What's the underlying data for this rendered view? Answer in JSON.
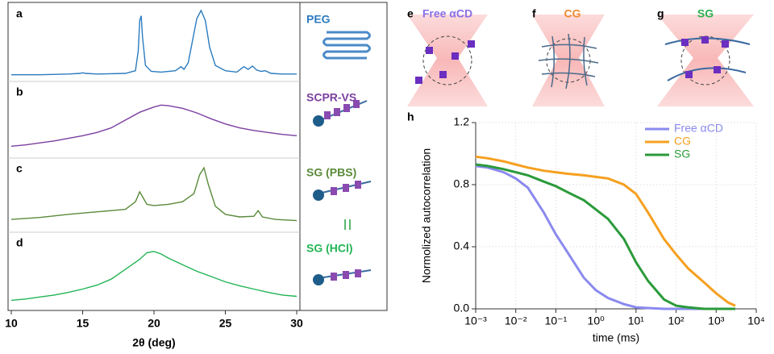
{
  "chart_data": [
    {
      "type": "line",
      "xlabel": "2θ (deg)",
      "xlim": [
        10,
        30
      ],
      "xticks": [
        10,
        15,
        20,
        25,
        30
      ],
      "ylim": [
        0,
        100
      ],
      "series": [
        {
          "name": "PEG",
          "panel": "a",
          "color": "#2b7bbf",
          "x": [
            10,
            12,
            14,
            14.8,
            15,
            15.2,
            16,
            18,
            18.7,
            18.9,
            19.0,
            19.1,
            19.2,
            19.4,
            19.8,
            20.5,
            21.5,
            21.9,
            22.1,
            22.4,
            22.7,
            23.0,
            23.3,
            23.6,
            23.9,
            24.3,
            25,
            25.8,
            26.3,
            26.6,
            26.9,
            27.2,
            27.5,
            27.8,
            28.2,
            29,
            30
          ],
          "values": [
            4,
            4,
            5,
            6,
            7,
            6,
            5,
            6,
            10,
            40,
            85,
            92,
            60,
            18,
            9,
            8,
            10,
            16,
            12,
            22,
            55,
            88,
            100,
            85,
            45,
            18,
            10,
            8,
            16,
            12,
            17,
            11,
            9,
            10,
            6,
            5,
            5
          ]
        },
        {
          "name": "SCPR-VS",
          "panel": "b",
          "color": "#7b3fa0",
          "x": [
            10,
            11,
            12,
            13,
            14,
            15,
            16,
            17,
            18,
            19,
            20,
            20.5,
            21,
            22,
            23,
            24,
            25,
            26,
            27,
            28,
            29,
            30
          ],
          "values": [
            12,
            14,
            17,
            20,
            24,
            28,
            33,
            40,
            52,
            64,
            72,
            75,
            74,
            70,
            63,
            54,
            46,
            40,
            36,
            33,
            30,
            28
          ]
        },
        {
          "name": "SG (PBS)",
          "panel": "c",
          "color": "#5a8a3a",
          "x": [
            10,
            12,
            14,
            16,
            17,
            18,
            18.7,
            19.0,
            19.2,
            19.5,
            20,
            21,
            22,
            22.8,
            23.2,
            23.5,
            23.8,
            24.3,
            25,
            26,
            27,
            27.3,
            27.6,
            28.5,
            30
          ],
          "values": [
            14,
            17,
            22,
            26,
            28,
            30,
            42,
            58,
            50,
            38,
            36,
            38,
            42,
            55,
            85,
            96,
            70,
            35,
            22,
            18,
            19,
            28,
            18,
            14,
            12
          ]
        },
        {
          "name": "SG (HCl)",
          "panel": "d",
          "color": "#22b455",
          "x": [
            10,
            11,
            12,
            13,
            14,
            15,
            16,
            17,
            18,
            19,
            19.5,
            20,
            20.5,
            21,
            22,
            23,
            24,
            25,
            26,
            27,
            28,
            29,
            30
          ],
          "values": [
            8,
            10,
            13,
            16,
            20,
            25,
            31,
            40,
            55,
            70,
            80,
            82,
            78,
            72,
            62,
            52,
            44,
            36,
            30,
            25,
            20,
            16,
            14
          ]
        }
      ]
    },
    {
      "type": "line",
      "panel": "h",
      "xlabel": "time (ms)",
      "ylabel": "Normolized autocorrelation",
      "xscale": "log",
      "grid": true,
      "legend": "upper right",
      "xlim": [
        0.001,
        10000
      ],
      "xticks": [
        {
          "value": 0.001,
          "label": "10⁻³"
        },
        {
          "value": 0.01,
          "label": "10⁻²"
        },
        {
          "value": 0.1,
          "label": "10⁻¹"
        },
        {
          "value": 1,
          "label": "10⁰"
        },
        {
          "value": 10,
          "label": "10¹"
        },
        {
          "value": 100,
          "label": "10²"
        },
        {
          "value": 1000,
          "label": "10³"
        },
        {
          "value": 10000,
          "label": "10⁴"
        }
      ],
      "ylim": [
        0,
        1.2
      ],
      "yticks": [
        {
          "value": 0,
          "label": "0.0"
        },
        {
          "value": 0.4,
          "label": "0.4"
        },
        {
          "value": 0.8,
          "label": "0.8"
        },
        {
          "value": 1.2,
          "label": "1.2"
        }
      ],
      "x": [
        0.001,
        0.002,
        0.005,
        0.01,
        0.02,
        0.05,
        0.1,
        0.2,
        0.5,
        1,
        2,
        5,
        10,
        20,
        50,
        100,
        200,
        500,
        1000,
        2000,
        3000
      ],
      "series": [
        {
          "name": "Free αCD",
          "color": "#8a8aee",
          "values": [
            0.92,
            0.91,
            0.88,
            0.84,
            0.78,
            0.62,
            0.48,
            0.36,
            0.2,
            0.12,
            0.07,
            0.03,
            0.01,
            0.005,
            0,
            0,
            0,
            0,
            0,
            0,
            0
          ]
        },
        {
          "name": "CG",
          "color": "#f5a020",
          "values": [
            0.98,
            0.97,
            0.95,
            0.93,
            0.91,
            0.89,
            0.88,
            0.87,
            0.86,
            0.85,
            0.84,
            0.8,
            0.74,
            0.62,
            0.45,
            0.35,
            0.26,
            0.17,
            0.1,
            0.04,
            0.02
          ]
        },
        {
          "name": "SG",
          "color": "#2a9a3a",
          "values": [
            0.93,
            0.92,
            0.9,
            0.88,
            0.86,
            0.82,
            0.79,
            0.75,
            0.7,
            0.64,
            0.58,
            0.45,
            0.3,
            0.18,
            0.06,
            0.02,
            0.01,
            0,
            0,
            0,
            0
          ]
        }
      ]
    }
  ],
  "schematics": [
    {
      "letter": "e",
      "label": "Free αCD",
      "color": "#8a6ee8"
    },
    {
      "letter": "f",
      "label": "CG",
      "color": "#f08a30"
    },
    {
      "letter": "g",
      "label": "SG",
      "color": "#2ab050"
    }
  ]
}
